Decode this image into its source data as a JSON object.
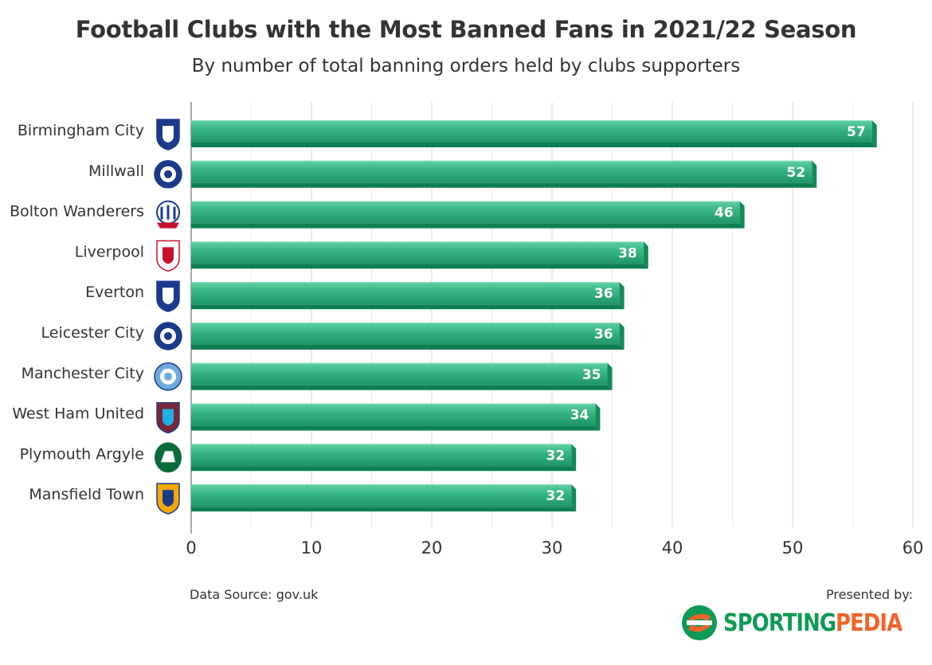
{
  "title": "Football Clubs with the Most Banned Fans in 2021/22 Season",
  "subtitle": "By number of total banning orders held by clubs supporters",
  "footer": {
    "source": "Data Source: gov.uk",
    "presented": "Presented by:",
    "brand_part1": "SPORTING",
    "brand_part2": "PEDIA"
  },
  "colors": {
    "bar_light": "#4cc496",
    "bar_mid": "#2aa775",
    "bar_dark": "#0e8052",
    "grid": "#dddddd",
    "text": "#333333",
    "brand_green": "#0e9a55",
    "brand_orange": "#f0642a"
  },
  "chart_data": {
    "type": "bar",
    "orientation": "horizontal",
    "categories": [
      "Birmingham City",
      "Millwall",
      "Bolton Wanderers",
      "Liverpool",
      "Everton",
      "Leicester City",
      "Manchester City",
      "West Ham United",
      "Plymouth Argyle",
      "Mansfield Town"
    ],
    "values": [
      57,
      52,
      46,
      38,
      36,
      36,
      35,
      34,
      32,
      32
    ],
    "icons": [
      "birmingham-city-crest",
      "millwall-crest",
      "bolton-wanderers-crest",
      "liverpool-crest",
      "everton-crest",
      "leicester-city-crest",
      "manchester-city-crest",
      "west-ham-united-crest",
      "plymouth-argyle-crest",
      "mansfield-town-crest"
    ],
    "xlim": [
      0,
      60
    ],
    "xticks": [
      0,
      10,
      20,
      30,
      40,
      50,
      60
    ],
    "grid": true,
    "xlabel": "",
    "ylabel": "",
    "title": "Football Clubs with the Most Banned Fans in 2021/22 Season"
  }
}
